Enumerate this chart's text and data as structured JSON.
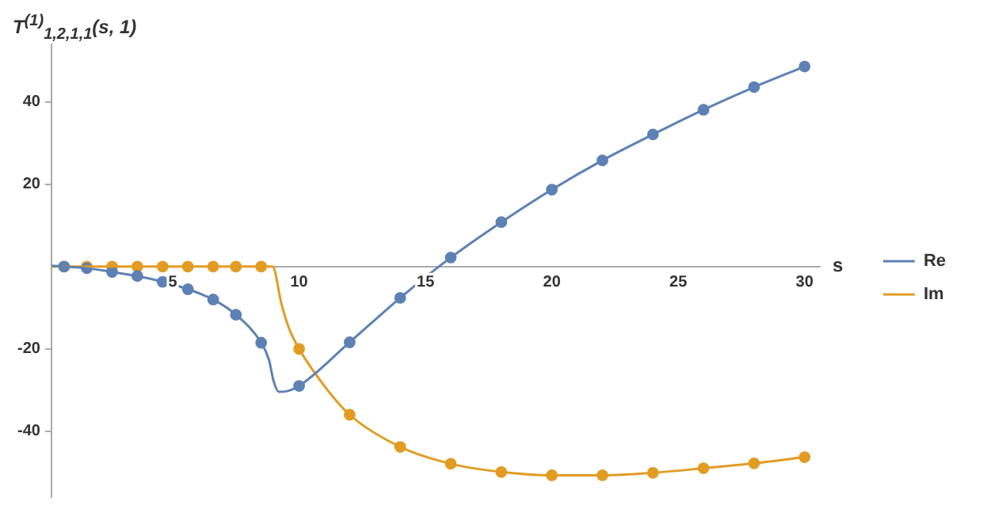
{
  "chart_data": {
    "type": "line",
    "xlabel": "s",
    "ylabel": "T$^{(1)}$$_{1,2,1,1}$(s, 1)",
    "xlim": [
      0.2,
      30.6
    ],
    "ylim": [
      -56,
      54
    ],
    "xticks": [
      5,
      10,
      15,
      20,
      25,
      30
    ],
    "yticks": [
      -40,
      -20,
      20,
      40
    ],
    "grid": false,
    "legend": "right",
    "series": [
      {
        "name": "Re",
        "type": "line",
        "marker": "none",
        "color": "#5e81b5",
        "x": [
          0.2,
          0.7,
          1.6,
          2.6,
          3.6,
          4.6,
          5.6,
          6.6,
          7.5,
          8.5,
          8.8,
          9.0,
          9.2,
          9.5,
          10,
          12,
          14,
          16,
          18,
          20,
          22,
          24,
          26,
          28,
          30
        ],
        "values": [
          0.2,
          0,
          -0.4,
          -1.3,
          -2.3,
          -3.7,
          -5.5,
          -8,
          -11.7,
          -18.5,
          -22.5,
          -28,
          -30.4,
          -30.3,
          -29,
          -18.4,
          -7.6,
          2.2,
          10.8,
          18.7,
          25.8,
          32.1,
          38.1,
          43.6,
          48.6
        ]
      },
      {
        "name": "Im",
        "type": "line",
        "marker": "none",
        "color": "#e19c24",
        "x": [
          0.2,
          8.95,
          9.3,
          9.6,
          10,
          11,
          12,
          14,
          16,
          18,
          20,
          22,
          24,
          26,
          28,
          30
        ],
        "values": [
          0,
          0,
          -9,
          -15,
          -20,
          -29,
          -36,
          -43.8,
          -47.9,
          -49.9,
          -50.7,
          -50.7,
          -50.1,
          -49,
          -47.8,
          -46.3
        ]
      },
      {
        "type": "scatter",
        "marker": "circle",
        "color": "#5e81b5",
        "x": [
          0.7,
          1.6,
          2.6,
          3.6,
          4.6,
          5.6,
          6.6,
          7.5,
          8.5,
          10,
          12,
          14,
          16,
          18,
          20,
          22,
          24,
          26,
          28,
          30
        ],
        "values": [
          0,
          -0.4,
          -1.3,
          -2.3,
          -3.7,
          -5.5,
          -8,
          -11.7,
          -18.5,
          -29,
          -18.4,
          -7.6,
          2.2,
          10.8,
          18.7,
          25.8,
          32.1,
          38.1,
          43.6,
          48.6
        ]
      },
      {
        "type": "scatter",
        "marker": "circle",
        "color": "#e19c24",
        "x": [
          0.7,
          1.6,
          2.6,
          3.6,
          4.6,
          5.6,
          6.6,
          7.5,
          8.5,
          10,
          12,
          14,
          16,
          18,
          20,
          22,
          24,
          26,
          28,
          30
        ],
        "values": [
          0,
          0,
          0,
          0,
          0,
          0,
          0,
          0,
          0,
          -20,
          -36,
          -43.8,
          -47.9,
          -49.9,
          -50.7,
          -50.7,
          -50.1,
          -49,
          -47.8,
          -46.3
        ]
      }
    ]
  }
}
